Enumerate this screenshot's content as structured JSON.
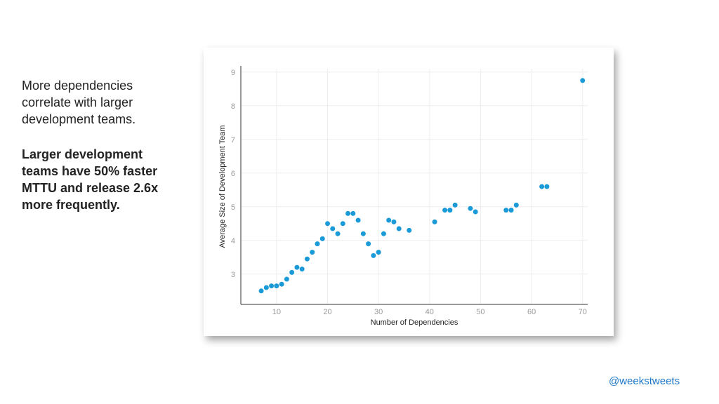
{
  "slide": {
    "intro": "More dependencies correlate with larger development teams.",
    "statement": "Larger development teams have 50% faster MTTU and release 2.6x more frequently.",
    "handle": "@weekstweets"
  },
  "chart_data": {
    "type": "scatter",
    "xlabel": "Number of Dependencies",
    "ylabel": "Average Size of Development Team",
    "xlim": [
      3,
      71
    ],
    "ylim": [
      2.1,
      9.1
    ],
    "x_ticks": [
      10,
      20,
      30,
      40,
      50,
      60,
      70
    ],
    "y_ticks": [
      3,
      4,
      5,
      6,
      7,
      8,
      9
    ],
    "grid": true,
    "color": "#1a9ad6",
    "points": [
      [
        7,
        2.5
      ],
      [
        8,
        2.6
      ],
      [
        9,
        2.65
      ],
      [
        10,
        2.65
      ],
      [
        11,
        2.7
      ],
      [
        12,
        2.85
      ],
      [
        13,
        3.05
      ],
      [
        14,
        3.2
      ],
      [
        15,
        3.15
      ],
      [
        16,
        3.45
      ],
      [
        17,
        3.65
      ],
      [
        18,
        3.9
      ],
      [
        19,
        4.05
      ],
      [
        20,
        4.5
      ],
      [
        21,
        4.35
      ],
      [
        22,
        4.2
      ],
      [
        23,
        4.5
      ],
      [
        24,
        4.8
      ],
      [
        25,
        4.8
      ],
      [
        26,
        4.6
      ],
      [
        27,
        4.2
      ],
      [
        28,
        3.9
      ],
      [
        29,
        3.55
      ],
      [
        30,
        3.65
      ],
      [
        31,
        4.2
      ],
      [
        32,
        4.6
      ],
      [
        33,
        4.55
      ],
      [
        34,
        4.35
      ],
      [
        36,
        4.3
      ],
      [
        41,
        4.55
      ],
      [
        43,
        4.9
      ],
      [
        44,
        4.9
      ],
      [
        45,
        5.05
      ],
      [
        48,
        4.95
      ],
      [
        49,
        4.85
      ],
      [
        55,
        4.9
      ],
      [
        56,
        4.9
      ],
      [
        57,
        5.05
      ],
      [
        62,
        5.6
      ],
      [
        63,
        5.6
      ],
      [
        70,
        8.75
      ]
    ]
  }
}
